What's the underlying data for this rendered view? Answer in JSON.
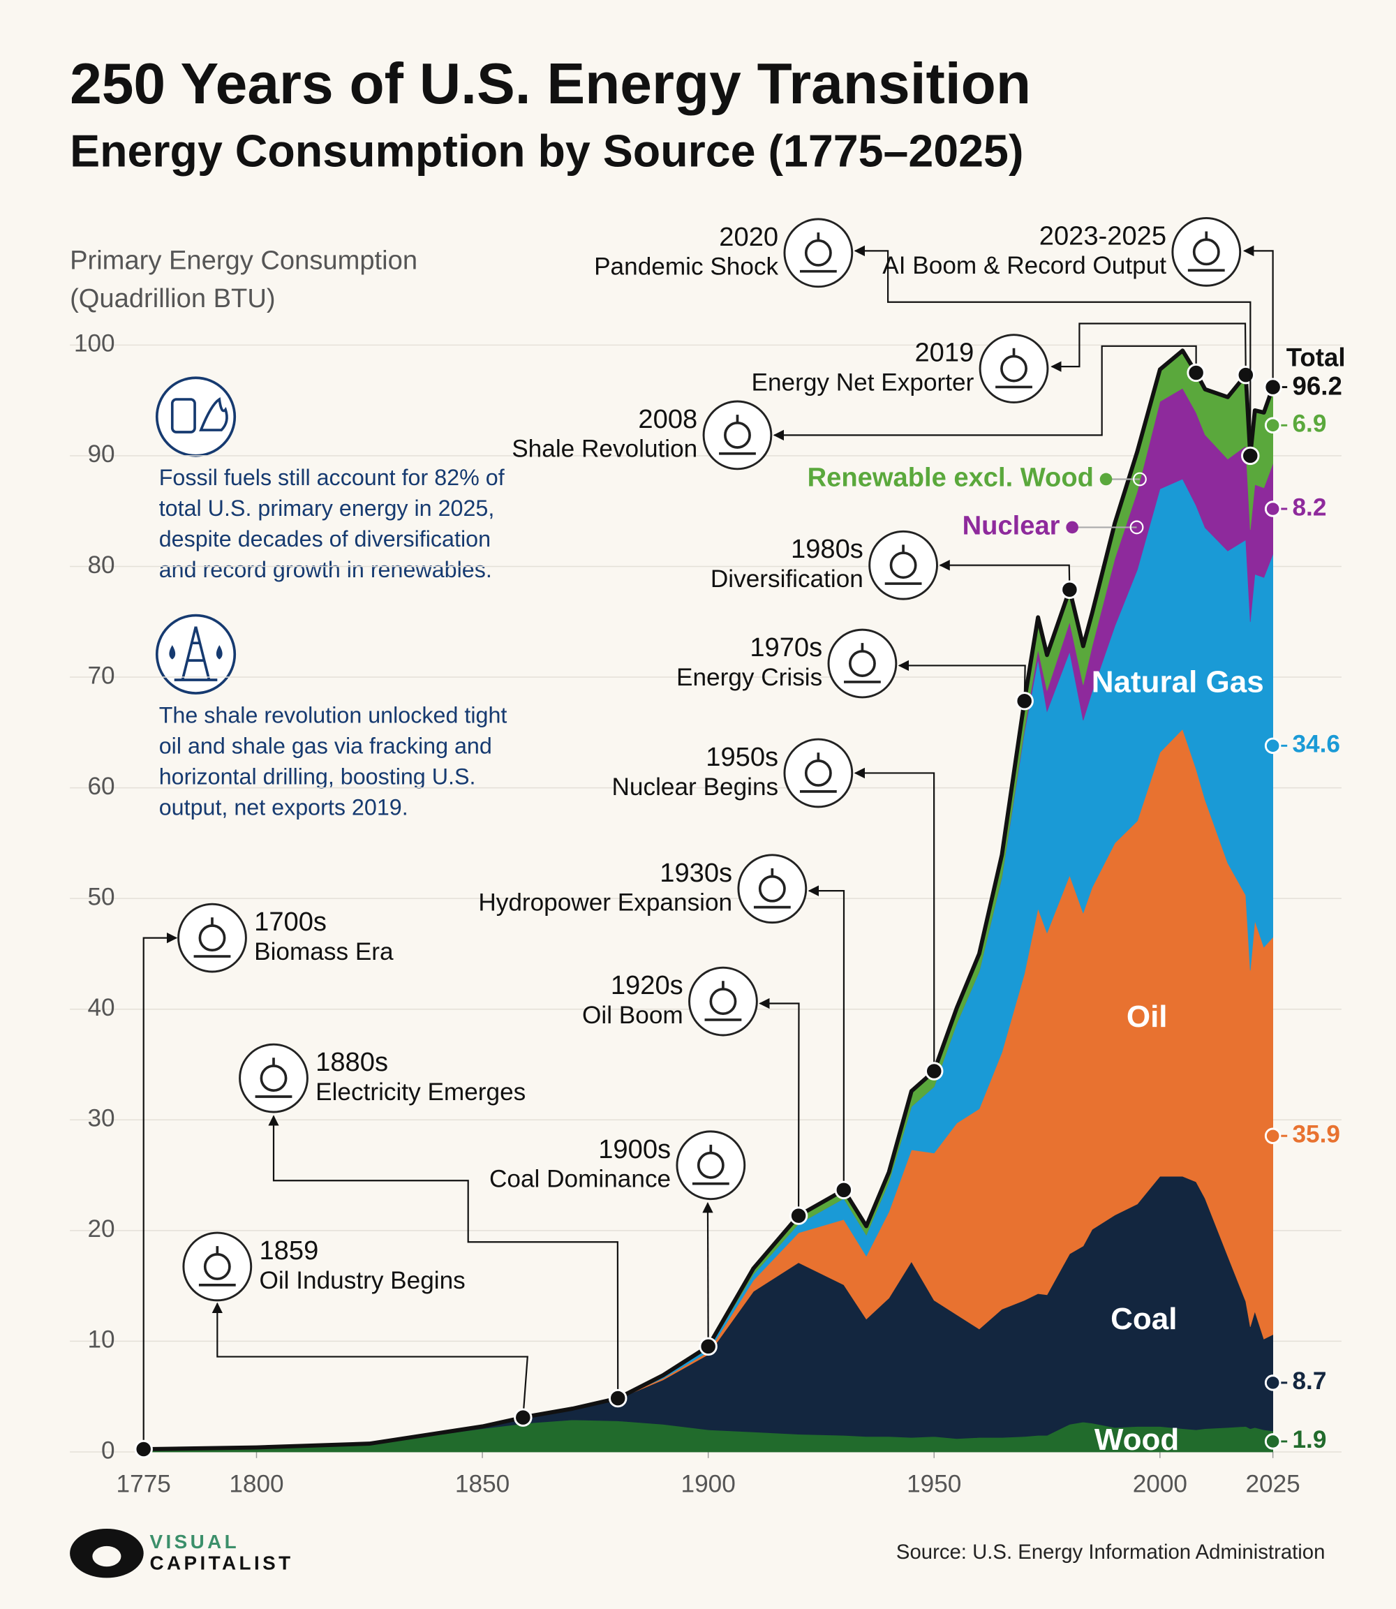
{
  "chart_data": {
    "type": "stacked_area",
    "title": "250 Years of U.S. Energy Transition",
    "subtitle": "Energy Consumption by Source (1775–2025)",
    "y_label": [
      "Primary Energy Consumption",
      "(Quadrillion BTU)"
    ],
    "x": [
      1775,
      1800,
      1825,
      1850,
      1860,
      1870,
      1880,
      1890,
      1900,
      1910,
      1920,
      1930,
      1935,
      1940,
      1945,
      1950,
      1955,
      1960,
      1965,
      1970,
      1973,
      1975,
      1980,
      1983,
      1985,
      1990,
      1995,
      2000,
      2005,
      2008,
      2010,
      2015,
      2019,
      2020,
      2021,
      2023,
      2025
    ],
    "series": [
      {
        "name": "Wood",
        "color": "#216b2c",
        "values": [
          0.25,
          0.4,
          0.7,
          2.1,
          2.6,
          2.9,
          2.8,
          2.5,
          2.0,
          1.8,
          1.6,
          1.5,
          1.4,
          1.4,
          1.3,
          1.4,
          1.2,
          1.3,
          1.3,
          1.4,
          1.5,
          1.5,
          2.5,
          2.7,
          2.6,
          2.2,
          2.3,
          2.3,
          2.1,
          2.0,
          2.1,
          2.2,
          2.3,
          2.1,
          2.2,
          2.0,
          1.9
        ]
      },
      {
        "name": "Coal",
        "color": "#13263f",
        "values": [
          0,
          0.01,
          0.05,
          0.2,
          0.6,
          1.0,
          2.0,
          4.0,
          6.8,
          12.7,
          15.5,
          13.6,
          10.6,
          12.5,
          15.9,
          12.3,
          11.2,
          9.8,
          11.6,
          12.3,
          12.8,
          12.7,
          15.4,
          15.9,
          17.5,
          19.2,
          20.1,
          22.6,
          22.8,
          22.4,
          20.8,
          15.5,
          11.3,
          9.2,
          10.5,
          8.2,
          8.7
        ]
      },
      {
        "name": "Oil",
        "color": "#e87230",
        "values": [
          0,
          0,
          0,
          0,
          0,
          0.01,
          0.05,
          0.15,
          0.23,
          1.0,
          2.7,
          5.9,
          5.7,
          7.8,
          10.1,
          13.3,
          17.3,
          19.9,
          23.2,
          29.5,
          34.8,
          32.7,
          34.2,
          30.1,
          30.9,
          33.6,
          34.6,
          38.3,
          40.4,
          37.3,
          36.0,
          35.5,
          36.7,
          32.2,
          35.3,
          35.4,
          35.9
        ]
      },
      {
        "name": "Natural Gas",
        "color": "#1a9ad6",
        "values": [
          0,
          0,
          0,
          0,
          0,
          0,
          0,
          0.26,
          0.25,
          0.54,
          0.8,
          1.9,
          1.9,
          2.7,
          3.9,
          6.0,
          9.0,
          12.4,
          15.8,
          21.8,
          22.5,
          20.0,
          20.2,
          17.4,
          17.7,
          19.6,
          22.7,
          23.8,
          22.6,
          23.8,
          24.6,
          28.2,
          32.1,
          31.5,
          31.3,
          33.4,
          34.6
        ]
      },
      {
        "name": "Nuclear",
        "color": "#8e2a9c",
        "values": [
          0,
          0,
          0,
          0,
          0,
          0,
          0,
          0,
          0,
          0,
          0,
          0,
          0,
          0,
          0,
          0,
          0,
          0.01,
          0.04,
          0.24,
          0.9,
          1.9,
          2.7,
          3.2,
          4.1,
          6.1,
          7.1,
          7.9,
          8.2,
          8.4,
          8.4,
          8.3,
          8.5,
          8.3,
          8.1,
          8.1,
          8.2
        ]
      },
      {
        "name": "Renewable excl. Wood",
        "color": "#5aa83c",
        "values": [
          0,
          0,
          0,
          0,
          0,
          0,
          0,
          0.02,
          0.25,
          0.54,
          0.74,
          0.76,
          0.8,
          0.88,
          1.4,
          1.4,
          1.4,
          1.6,
          2.0,
          2.6,
          2.9,
          3.2,
          2.9,
          3.5,
          3.0,
          3.2,
          3.6,
          2.9,
          3.4,
          3.6,
          4.1,
          5.6,
          6.4,
          6.7,
          6.7,
          6.8,
          6.9
        ]
      }
    ],
    "total_label": "Total",
    "total_value": 96.2,
    "xlim": [
      1775,
      2025
    ],
    "xticks": [
      1775,
      1800,
      1850,
      1900,
      1950,
      2000,
      2025
    ],
    "ylim": [
      0,
      100
    ],
    "yticks": [
      0,
      10,
      20,
      30,
      40,
      50,
      60,
      70,
      80,
      90,
      100
    ],
    "grid": true,
    "annotations": [
      {
        "year": "1700s",
        "text": "Biomass Era",
        "x": 1775
      },
      {
        "year": "1859",
        "text": "Oil Industry Begins",
        "x": 1859
      },
      {
        "year": "1880s",
        "text": "Electricity Emerges",
        "x": 1880
      },
      {
        "year": "1900s",
        "text": "Coal Dominance",
        "x": 1900
      },
      {
        "year": "1920s",
        "text": "Oil Boom",
        "x": 1920
      },
      {
        "year": "1930s",
        "text": "Hydropower Expansion",
        "x": 1930
      },
      {
        "year": "1950s",
        "text": "Nuclear Begins",
        "x": 1950
      },
      {
        "year": "1970s",
        "text": "Energy Crisis",
        "x": 1970
      },
      {
        "year": "1980s",
        "text": "Diversification",
        "x": 1980
      },
      {
        "year": "2008",
        "text": "Shale Revolution",
        "x": 2008
      },
      {
        "year": "2019",
        "text": "Energy Net Exporter",
        "x": 2019
      },
      {
        "year": "2020",
        "text": "Pandemic Shock",
        "x": 2020
      },
      {
        "year": "2023-2025",
        "text": "AI Boom & Record Output",
        "x": 2025
      }
    ],
    "notes": [
      [
        "Fossil fuels still account for 82% of",
        "total U.S. primary energy in 2025,",
        "despite decades of diversification",
        "and record growth in renewables."
      ],
      [
        "The shale revolution unlocked tight",
        "oil and shale gas via fracking and",
        "horizontal drilling, boosting U.S.",
        "output, net exports 2019."
      ]
    ],
    "logo": [
      "VISUAL",
      "CAPITALIST"
    ],
    "source": "Source: U.S. Energy Information Administration"
  }
}
